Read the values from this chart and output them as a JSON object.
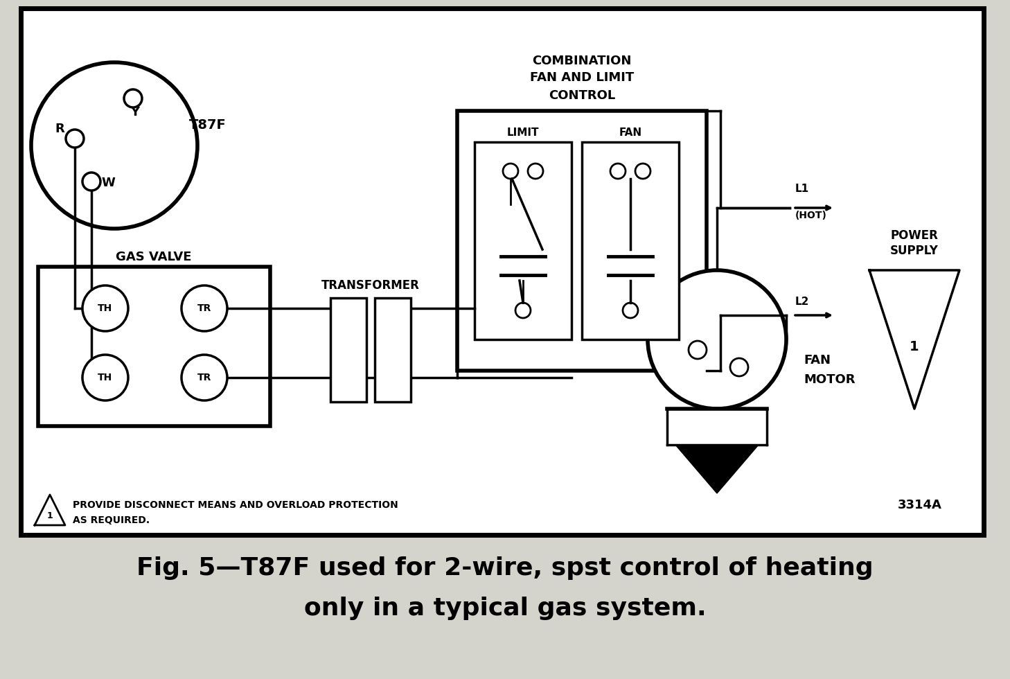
{
  "bg_outer": "#d4d4cc",
  "bg_inner": "#ffffff",
  "lc": "#000000",
  "thermostat_label": "T87F",
  "gas_valve_label": "GAS VALVE",
  "transformer_label": "TRANSFORMER",
  "combo_label_1": "COMBINATION",
  "combo_label_2": "FAN AND LIMIT",
  "combo_label_3": "CONTROL",
  "limit_label": "LIMIT",
  "fan_label": "FAN",
  "fan_motor_1": "FAN",
  "fan_motor_2": "MOTOR",
  "l1_label": "L1",
  "l1_sub": "(HOT)",
  "l2_label": "L2",
  "ps_label_1": "POWER",
  "ps_label_2": "SUPPLY",
  "note_text_1": "PROVIDE DISCONNECT MEANS AND OVERLOAD PROTECTION",
  "note_text_2": "AS REQUIRED.",
  "diagram_num": "3314A",
  "caption_1": "Fig. 5—T87F used for 2-wire, spst control of heating",
  "caption_2": "only in a typical gas system."
}
